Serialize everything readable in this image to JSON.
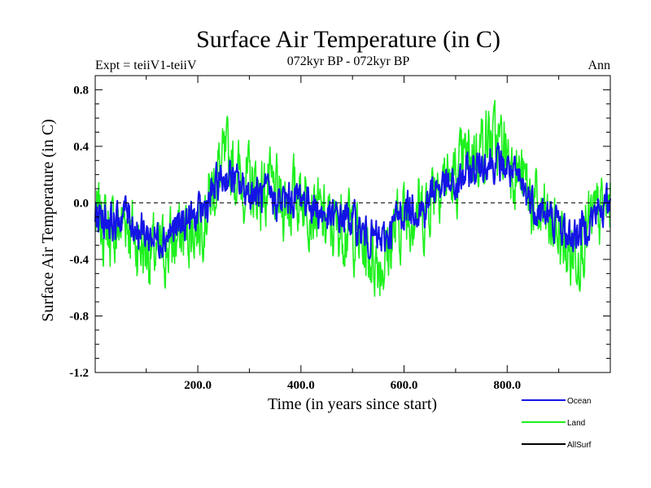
{
  "header": {
    "title": "Surface Air Temperature (in C)",
    "subtitle": "072kyr BP - 072kyr BP",
    "left_label": "Expt = teiiV1-teiiV",
    "right_label": "Ann"
  },
  "chart_data": {
    "type": "line",
    "title": "Surface Air Temperature (in C)",
    "xlabel": "Time (in years since start)",
    "ylabel": "Surface Air Temperature (in C)",
    "xlim": [
      1,
      1000
    ],
    "ylim": [
      -1.2,
      0.9
    ],
    "x_ticks": [
      200,
      400,
      600,
      800
    ],
    "x_tick_labels": [
      "200.0",
      "400.0",
      "600.0",
      "800.0"
    ],
    "y_ticks": [
      0.8,
      0.4,
      0.0,
      -0.4,
      -0.8,
      -1.2
    ],
    "y_tick_labels": [
      "0.8",
      "0.4",
      "0.0",
      "-0.4",
      "-0.8",
      "-1.2"
    ],
    "zero_line": true,
    "grid": false,
    "legend_position": "bottom-right",
    "series": [
      {
        "name": "Ocean",
        "color": "#1414e6",
        "x": [
          1,
          20,
          40,
          60,
          80,
          100,
          120,
          140,
          160,
          180,
          200,
          220,
          240,
          260,
          280,
          300,
          320,
          340,
          360,
          380,
          400,
          420,
          440,
          460,
          480,
          500,
          520,
          540,
          560,
          580,
          600,
          620,
          640,
          660,
          680,
          700,
          720,
          740,
          760,
          780,
          800,
          820,
          840,
          860,
          880,
          900,
          920,
          940,
          960,
          980,
          1000
        ],
        "values": [
          -0.08,
          -0.1,
          -0.15,
          -0.05,
          -0.18,
          -0.22,
          -0.25,
          -0.22,
          -0.18,
          -0.12,
          -0.1,
          0.0,
          0.15,
          0.2,
          0.12,
          0.08,
          0.05,
          0.05,
          0.0,
          0.02,
          0.05,
          0.0,
          -0.08,
          -0.12,
          -0.1,
          -0.12,
          -0.22,
          -0.25,
          -0.28,
          -0.15,
          -0.05,
          -0.02,
          -0.05,
          0.12,
          0.12,
          0.1,
          0.2,
          0.25,
          0.3,
          0.28,
          0.25,
          0.15,
          0.05,
          -0.05,
          -0.1,
          -0.15,
          -0.25,
          -0.2,
          -0.12,
          -0.05,
          0.0
        ]
      },
      {
        "name": "Land",
        "color": "#1ef01e",
        "x": [
          1,
          20,
          40,
          60,
          80,
          100,
          120,
          140,
          160,
          180,
          200,
          220,
          240,
          260,
          280,
          300,
          320,
          340,
          360,
          380,
          400,
          420,
          440,
          460,
          480,
          500,
          520,
          540,
          560,
          580,
          600,
          620,
          640,
          660,
          680,
          700,
          720,
          740,
          760,
          780,
          800,
          820,
          840,
          860,
          880,
          900,
          920,
          940,
          960,
          980,
          1000
        ],
        "values": [
          -0.12,
          -0.15,
          -0.22,
          -0.08,
          -0.28,
          -0.32,
          -0.38,
          -0.32,
          -0.26,
          -0.18,
          -0.15,
          0.0,
          0.22,
          0.3,
          0.18,
          0.12,
          0.08,
          0.08,
          0.0,
          0.03,
          0.08,
          0.0,
          -0.12,
          -0.18,
          -0.15,
          -0.18,
          -0.32,
          -0.38,
          -0.42,
          -0.22,
          -0.08,
          -0.03,
          -0.08,
          0.18,
          0.18,
          0.15,
          0.3,
          0.38,
          0.45,
          0.42,
          0.38,
          0.22,
          0.08,
          -0.08,
          -0.15,
          -0.22,
          -0.38,
          -0.3,
          -0.18,
          -0.08,
          0.0
        ]
      },
      {
        "name": "AllSurf",
        "color": "#000000",
        "x": [],
        "values": []
      }
    ]
  }
}
